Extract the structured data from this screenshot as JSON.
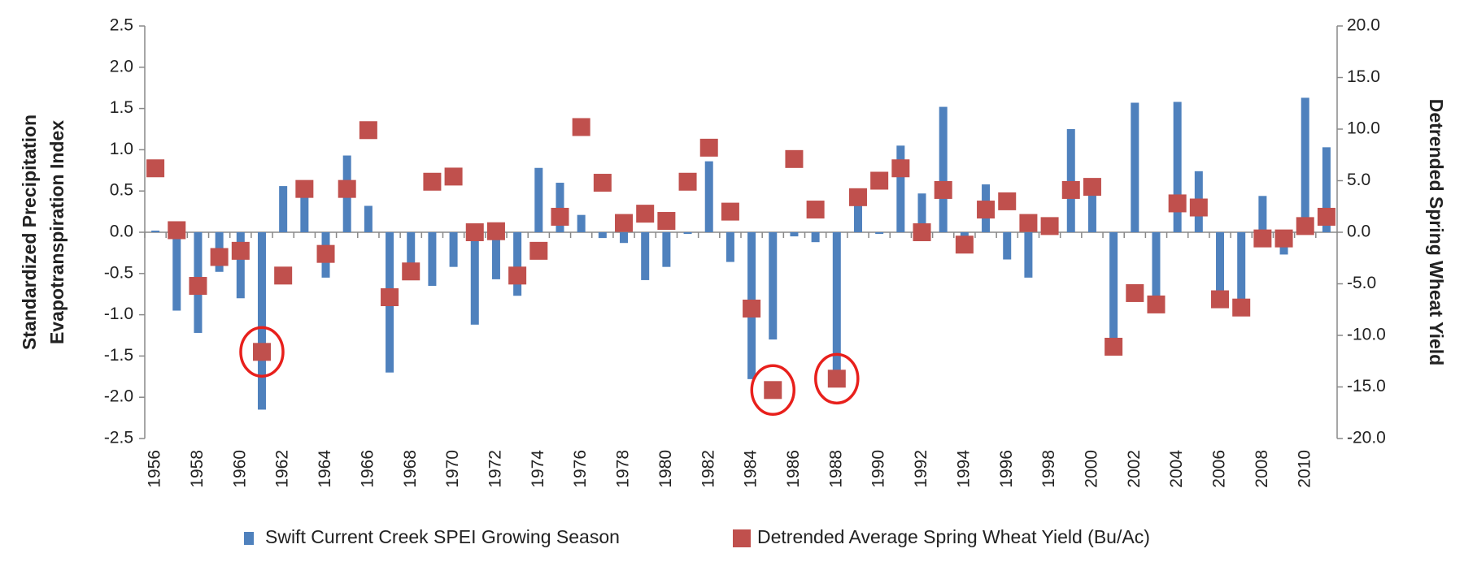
{
  "chart_data": {
    "type": "bar",
    "categories": [
      "1956",
      null,
      "1958",
      null,
      "1960",
      null,
      "1962",
      null,
      "1964",
      null,
      "1966",
      null,
      "1968",
      null,
      "1970",
      null,
      "1972",
      null,
      "1974",
      null,
      "1976",
      null,
      "1978",
      null,
      "1980",
      null,
      "1982",
      null,
      "1984",
      null,
      "1986",
      null,
      "1988",
      null,
      "1990",
      null,
      "1992",
      null,
      "1994",
      null,
      "1996",
      null,
      "1998",
      null,
      "2000",
      null,
      "2002",
      null,
      "2004",
      null,
      "2006",
      null,
      "2008",
      null,
      "2010",
      null
    ],
    "series": [
      {
        "name": "Swift Current Creek SPEI Growing Season",
        "type": "bar",
        "color": "#4f81bd",
        "axis": "y",
        "values": [
          0.02,
          -0.95,
          -1.22,
          -0.48,
          -0.8,
          -2.15,
          0.56,
          0.5,
          -0.55,
          0.93,
          0.32,
          -1.7,
          -0.4,
          -0.65,
          -0.42,
          -1.12,
          -0.57,
          -0.77,
          0.78,
          0.6,
          0.21,
          -0.07,
          -0.13,
          -0.58,
          -0.42,
          -0.02,
          0.86,
          -0.36,
          -1.78,
          -1.3,
          -0.05,
          -0.12,
          -1.72,
          0.42,
          -0.02,
          1.05,
          0.47,
          1.52,
          -0.07,
          0.58,
          -0.33,
          -0.55,
          0.0,
          1.25,
          0.55,
          -1.35,
          1.57,
          -0.97,
          1.58,
          0.74,
          -0.75,
          -0.85,
          0.44,
          -0.27,
          1.63,
          1.03
        ]
      },
      {
        "name": "Detrended Average Spring Wheat Yield (Bu/Ac)",
        "type": "scatter",
        "color": "#c0504d",
        "axis": "y2",
        "values": [
          6.2,
          0.2,
          -5.2,
          -2.4,
          -1.8,
          -11.6,
          -4.2,
          4.2,
          -2.1,
          4.2,
          9.9,
          -6.3,
          -3.8,
          4.9,
          5.4,
          0.0,
          0.1,
          -4.2,
          -1.8,
          1.5,
          10.2,
          4.8,
          0.9,
          1.8,
          1.1,
          4.9,
          8.2,
          2.0,
          -7.4,
          -15.3,
          7.1,
          2.2,
          -14.2,
          3.4,
          5.0,
          6.2,
          0.0,
          4.1,
          -1.2,
          2.2,
          3.0,
          0.9,
          0.6,
          4.1,
          4.4,
          -11.1,
          -5.9,
          -7.0,
          2.8,
          2.4,
          -6.5,
          -7.3,
          -0.6,
          -0.6,
          0.6,
          1.5
        ]
      }
    ],
    "y_label": [
      "Standardized Precipitation",
      "Evapotranspiration  Index"
    ],
    "y2_label": "Detrended Spring Wheat Yield",
    "ylim": [
      -2.5,
      2.5
    ],
    "yticks": [
      -2.5,
      {
        "value": -2,
        "label": "-2.0"
      },
      -1.5,
      {
        "value": -1,
        "label": "-1.0"
      },
      -0.5,
      {
        "value": 0,
        "label": "0.0"
      },
      0.5,
      {
        "value": 1,
        "label": "1.0"
      },
      1.5,
      {
        "value": 2,
        "label": "2.0"
      },
      2.5
    ],
    "y2lim": [
      -20,
      20
    ],
    "y2ticks": [
      {
        "value": -20,
        "label": "-20.0"
      },
      {
        "value": -15,
        "label": "-15.0"
      },
      {
        "value": -10,
        "label": "-10.0"
      },
      {
        "value": -5,
        "label": "-5.0"
      },
      {
        "value": 0,
        "label": "0.0"
      },
      {
        "value": 5,
        "label": "5.0"
      },
      {
        "value": 10,
        "label": "10.0"
      },
      {
        "value": 15,
        "label": "15.0"
      },
      {
        "value": 20,
        "label": "20.0"
      }
    ],
    "grid": false,
    "legend": "bottom",
    "highlight": {
      "indices": [
        5,
        29,
        32
      ],
      "color": "#e8201c"
    }
  }
}
